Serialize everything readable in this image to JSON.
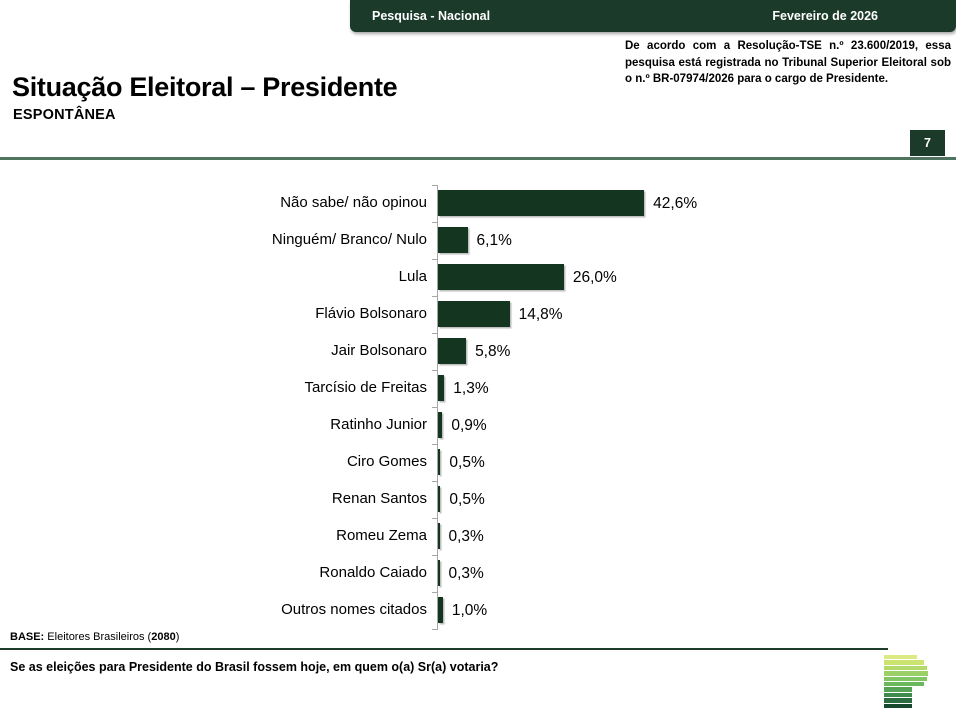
{
  "header": {
    "left_label": "Pesquisa - Nacional",
    "right_label": "Fevereiro de 2026",
    "bar_color": "#1b3a2a"
  },
  "title": {
    "main": "Situação Eleitoral – Presidente",
    "subtitle": "ESPONTÂNEA"
  },
  "regulatory_note": "De acordo com a Resolução-TSE n.º 23.600/2019, essa pesquisa está registrada no Tribunal Superior Eleitoral sob o n.º BR-07974/2026 para o cargo de Presidente.",
  "page_number": "7",
  "chart_data": {
    "type": "bar",
    "orientation": "horizontal",
    "title": "",
    "xlabel": "",
    "ylabel": "",
    "xlim": [
      0,
      100
    ],
    "grid": false,
    "bar_color": "#14351f",
    "axis_color": "#a6a6a6",
    "categories": [
      "Não sabe/ não opinou",
      "Ninguém/ Branco/ Nulo",
      "Lula",
      "Flávio Bolsonaro",
      "Jair Bolsonaro",
      "Tarcísio de Freitas",
      "Ratinho Junior",
      "Ciro Gomes",
      "Renan Santos",
      "Romeu Zema",
      "Ronaldo Caiado",
      "Outros nomes citados"
    ],
    "values": [
      42.6,
      6.1,
      26.0,
      14.8,
      5.8,
      1.3,
      0.9,
      0.5,
      0.5,
      0.3,
      0.3,
      1.0
    ],
    "value_labels": [
      "42,6%",
      "6,1%",
      "26,0%",
      "14,8%",
      "5,8%",
      "1,3%",
      "0,9%",
      "0,5%",
      "0,5%",
      "0,3%",
      "0,3%",
      "1,0%"
    ]
  },
  "base_note": {
    "prefix": "BASE:",
    "middle": " Eleitores Brasileiros (",
    "count": "2080",
    "suffix": ")"
  },
  "footer": {
    "question": "Se as eleições para Presidente do Brasil fossem hoje, em quem o(a) Sr(a) votaria?"
  },
  "logo": {
    "name": "pesquisa-p-bars-logo",
    "bars": [
      {
        "width": 33,
        "color": "#dcea83"
      },
      {
        "width": 40,
        "color": "#cbe36f"
      },
      {
        "width": 43,
        "color": "#b2d969"
      },
      {
        "width": 44,
        "color": "#9ad066"
      },
      {
        "width": 43,
        "color": "#82c563"
      },
      {
        "width": 40,
        "color": "#6ab95d"
      },
      {
        "width": 28,
        "color": "#55a455"
      },
      {
        "width": 28,
        "color": "#3f8b4c"
      },
      {
        "width": 28,
        "color": "#2b6c40"
      },
      {
        "width": 28,
        "color": "#17492f"
      }
    ]
  }
}
